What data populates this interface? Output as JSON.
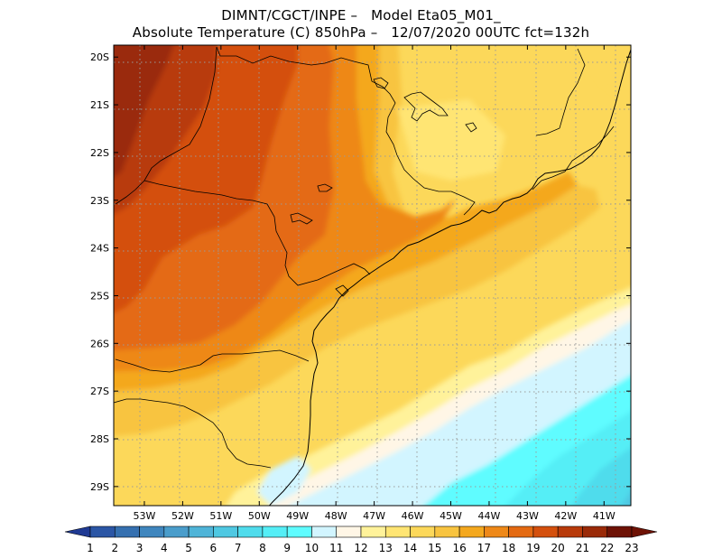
{
  "title": {
    "line1": "DIMNT/CGCT/INPE –   Model Eta05_M01_",
    "line2": "Absolute Temperature (C) 850hPa –   12/07/2020 00UTC fct=132h"
  },
  "map": {
    "lon_range": [
      -53.8,
      -40.3
    ],
    "lat_range": [
      -29.4,
      -19.75
    ],
    "lon_ticks": [
      "53W",
      "52W",
      "51W",
      "50W",
      "49W",
      "48W",
      "47W",
      "46W",
      "45W",
      "44W",
      "43W",
      "42W",
      "41W"
    ],
    "lon_values": [
      -53,
      -52,
      -51,
      -50,
      -49,
      -48,
      -47,
      -46,
      -45,
      -44,
      -43,
      -42,
      -41
    ],
    "lat_ticks": [
      "20S",
      "21S",
      "22S",
      "23S",
      "24S",
      "25S",
      "26S",
      "27S",
      "28S",
      "29S"
    ],
    "lat_values": [
      -20,
      -21,
      -22,
      -23,
      -24,
      -25,
      -26,
      -27,
      -28,
      -29
    ],
    "gridlines": "dotted"
  },
  "colorbar": {
    "labels": [
      "1",
      "2",
      "3",
      "4",
      "5",
      "6",
      "7",
      "8",
      "9",
      "10",
      "11",
      "12",
      "13",
      "14",
      "15",
      "16",
      "17",
      "18",
      "19",
      "20",
      "21",
      "22",
      "23"
    ],
    "colors": [
      "#1f3a93",
      "#2b56a5",
      "#3570b0",
      "#3f86be",
      "#4a9dcb",
      "#4fb4d8",
      "#4fc8e2",
      "#50dcec",
      "#55eef6",
      "#5ffcff",
      "#d2f5ff",
      "#fff6e6",
      "#fff29a",
      "#ffe573",
      "#fcd85a",
      "#f8c440",
      "#f4a81e",
      "#ee8818",
      "#e46a12",
      "#d4500d",
      "#b83a0a",
      "#9a2a08",
      "#6e1205"
    ]
  }
}
